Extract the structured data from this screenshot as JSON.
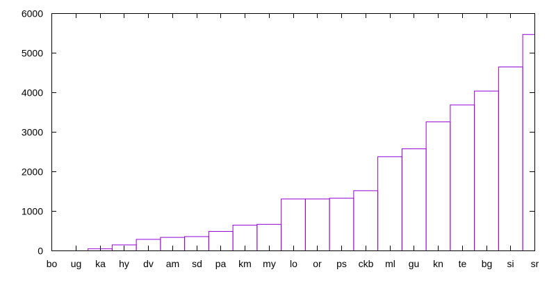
{
  "chart_data": {
    "type": "bar",
    "style": "gnuplot-boxes-outline",
    "categories": [
      "bo",
      "ug",
      "ka",
      "hy",
      "dv",
      "am",
      "sd",
      "pa",
      "km",
      "my",
      "lo",
      "or",
      "ps",
      "ckb",
      "ml",
      "gu",
      "kn",
      "te",
      "bg",
      "si",
      "sr"
    ],
    "values": [
      0,
      0,
      50,
      150,
      290,
      340,
      360,
      490,
      650,
      670,
      1310,
      1310,
      1330,
      1520,
      2380,
      2580,
      3260,
      3690,
      4040,
      4650,
      5470
    ],
    "ylim": [
      0,
      6000
    ],
    "yticks": [
      0,
      1000,
      2000,
      3000,
      4000,
      5000,
      6000
    ],
    "title": "",
    "xlabel": "",
    "ylabel": "",
    "grid": false,
    "legend": "none",
    "bar_color": "#9400d3",
    "axis_color": "#000000"
  }
}
